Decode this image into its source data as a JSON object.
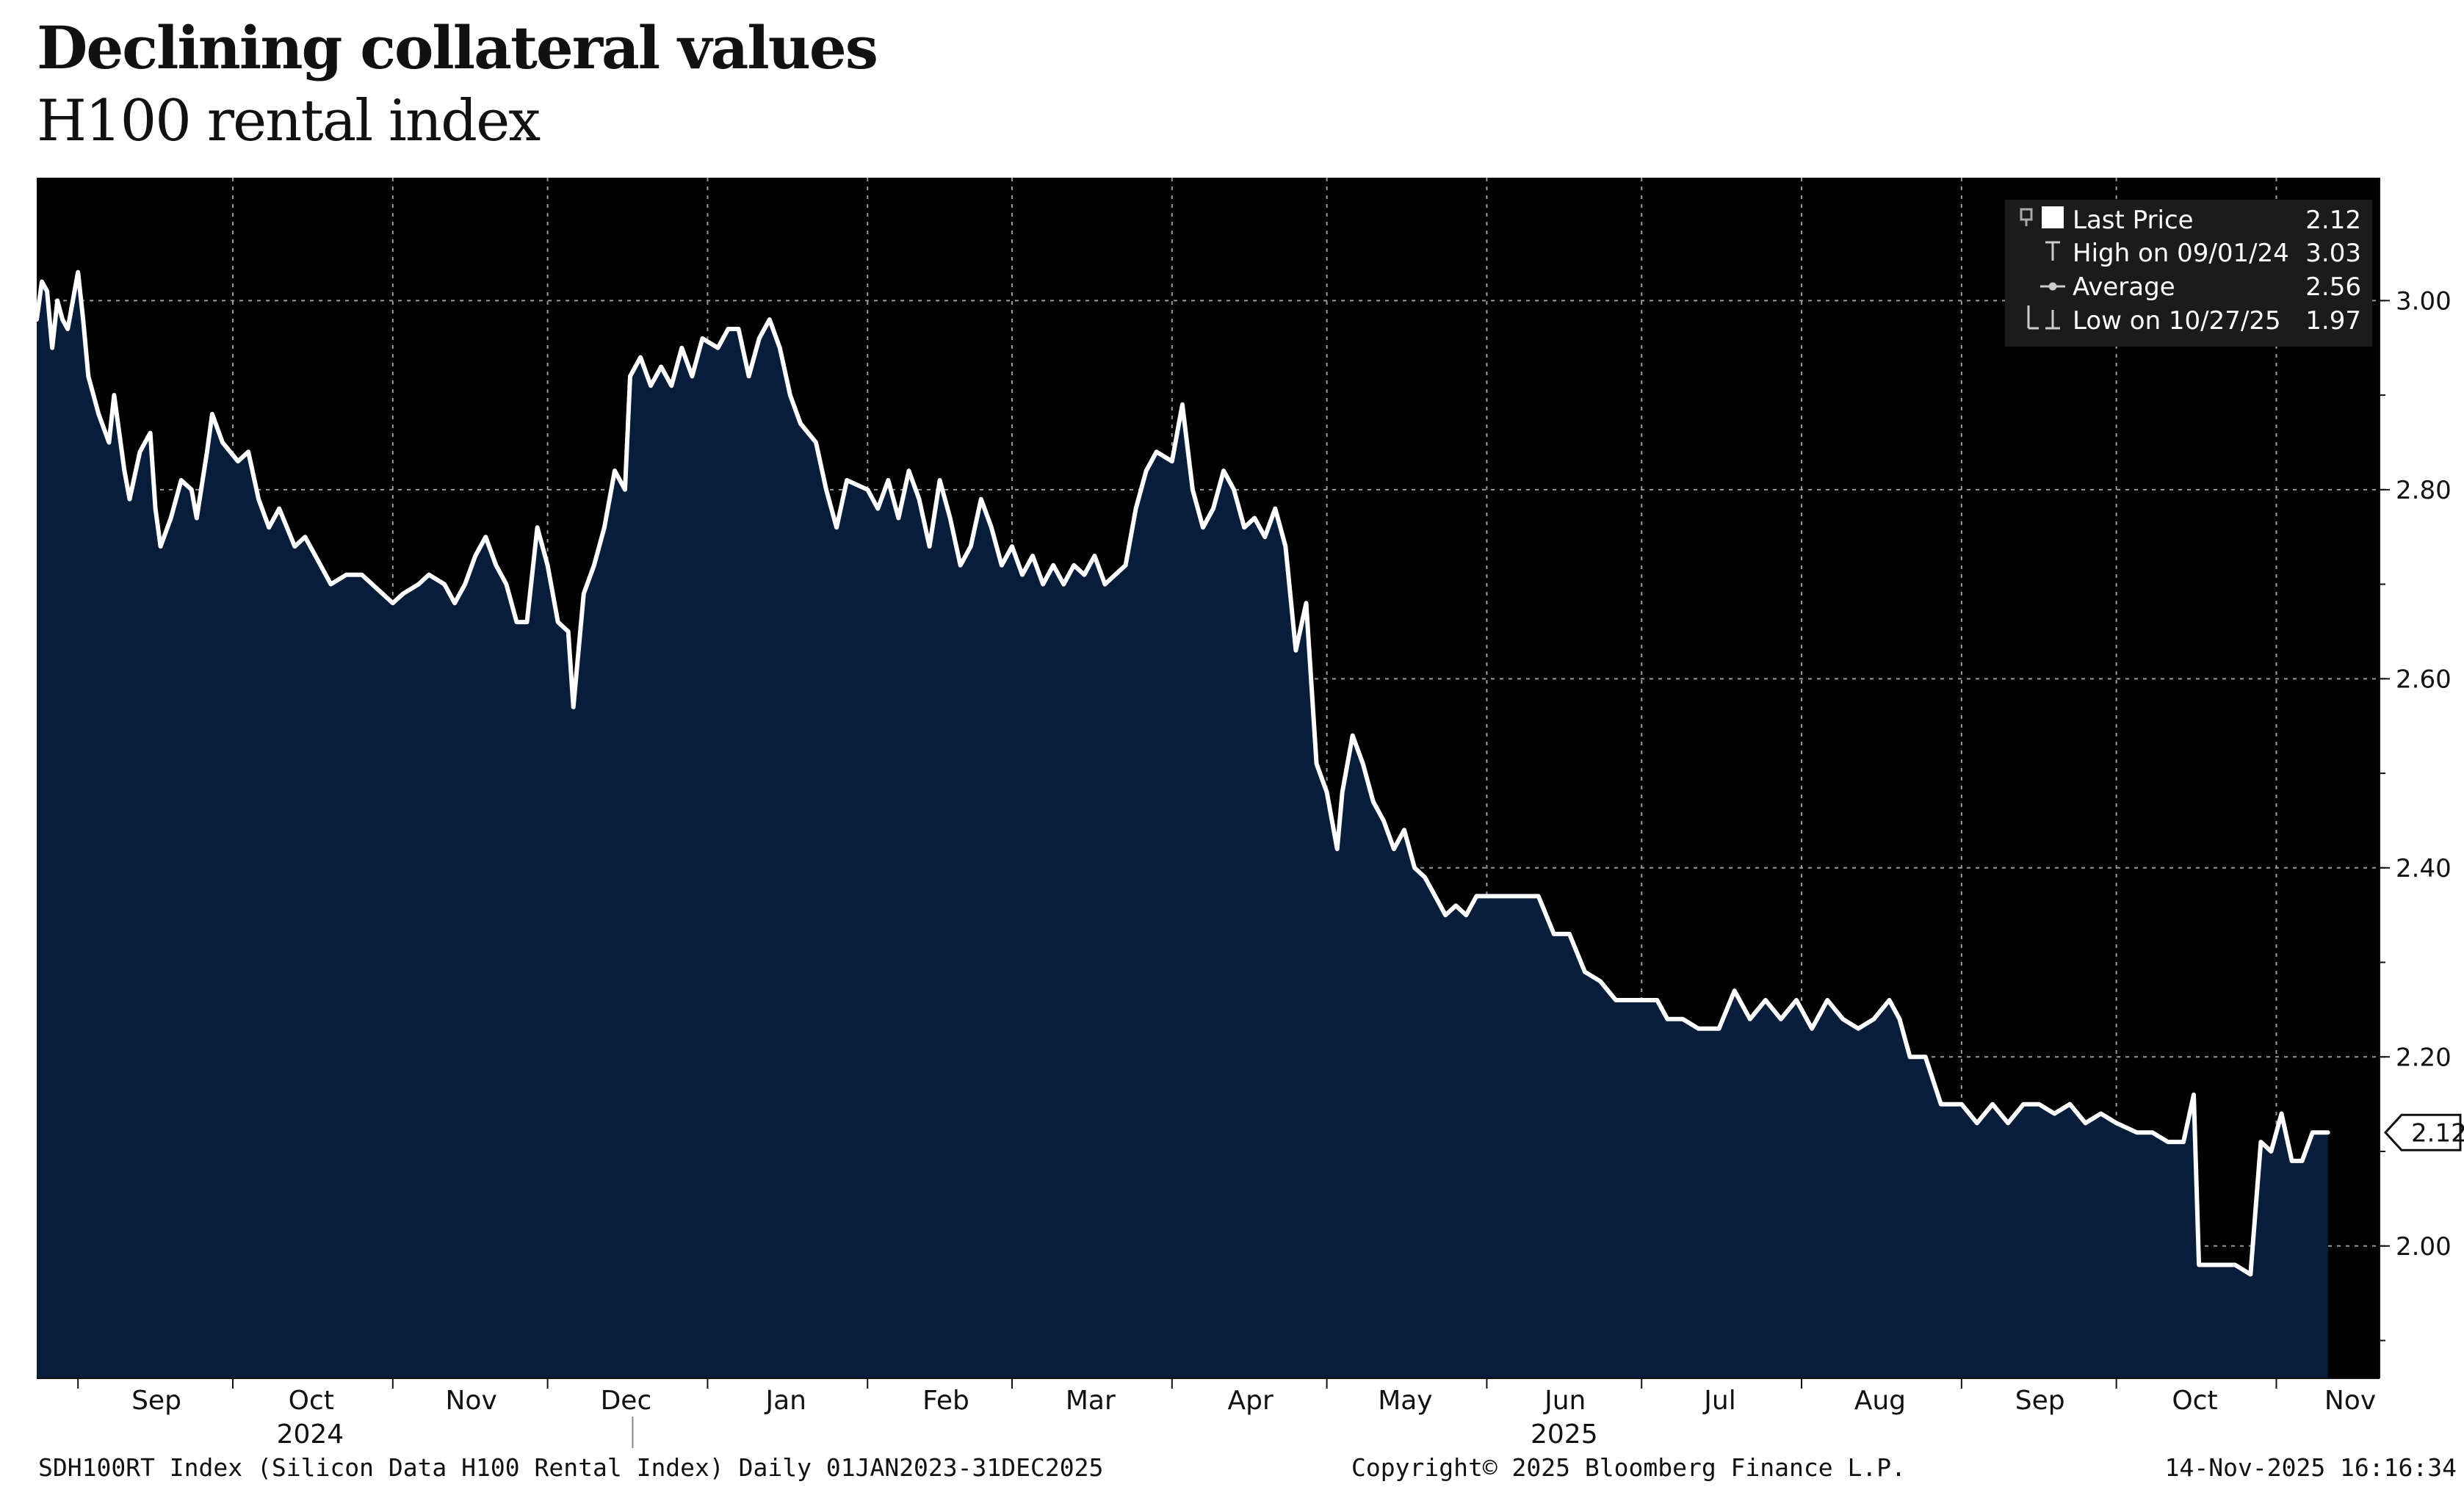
{
  "header": {
    "title": "Declining collateral values",
    "subtitle": "H100 rental index"
  },
  "footer": {
    "source": "SDH100RT Index (Silicon Data H100 Rental Index) Daily 01JAN2023-31DEC2025",
    "copyright": "Copyright© 2025 Bloomberg Finance L.P.",
    "timestamp": "14-Nov-2025 16:16:34"
  },
  "colors": {
    "plot_background": "#000000",
    "area_fill": "#071d3a",
    "line": "#ffffff",
    "grid": "#9a9a9a",
    "legend_background": "#1b1b1b"
  },
  "legend": {
    "rows": [
      {
        "icon": "square-icon",
        "label": "Last Price",
        "value": "2.12"
      },
      {
        "icon": "high-marker-icon",
        "label": "High on 09/01/24",
        "value": "3.03"
      },
      {
        "icon": "average-marker-icon",
        "label": "Average",
        "value": "2.56"
      },
      {
        "icon": "low-marker-icon",
        "label": "Low on 10/27/25",
        "value": "1.97"
      }
    ]
  },
  "last_value_tag": "2.12",
  "chart_data": {
    "type": "area",
    "title": "H100 rental index",
    "xlabel": "",
    "ylabel": "",
    "x_range": [
      "2024-08-24",
      "2025-11-21"
    ],
    "ylim": [
      1.86,
      3.13
    ],
    "y_ticks": [
      "2.00",
      "2.20",
      "2.40",
      "2.60",
      "2.80",
      "3.00"
    ],
    "y_axis_position": "right",
    "grid": true,
    "legend_position": "top-right",
    "x_ticks": [
      {
        "label": "Sep",
        "date": "2024-09-01"
      },
      {
        "label": "Oct",
        "date": "2024-10-01"
      },
      {
        "label": "Nov",
        "date": "2024-11-01"
      },
      {
        "label": "Dec",
        "date": "2024-12-01"
      },
      {
        "label": "Jan",
        "date": "2025-01-01"
      },
      {
        "label": "Feb",
        "date": "2025-02-01"
      },
      {
        "label": "Mar",
        "date": "2025-03-01"
      },
      {
        "label": "Apr",
        "date": "2025-04-01"
      },
      {
        "label": "May",
        "date": "2025-05-01"
      },
      {
        "label": "Jun",
        "date": "2025-06-01"
      },
      {
        "label": "Jul",
        "date": "2025-07-01"
      },
      {
        "label": "Aug",
        "date": "2025-08-01"
      },
      {
        "label": "Sep",
        "date": "2025-09-01"
      },
      {
        "label": "Oct",
        "date": "2025-10-01"
      },
      {
        "label": "Nov",
        "date": "2025-11-01"
      }
    ],
    "year_labels": [
      {
        "label": "2024",
        "date": "2024-10-16"
      },
      {
        "label": "2025",
        "date": "2025-06-16"
      }
    ],
    "series": [
      {
        "name": "Last Price",
        "points": [
          [
            "2024-08-24",
            2.98
          ],
          [
            "2024-08-25",
            3.02
          ],
          [
            "2024-08-26",
            3.01
          ],
          [
            "2024-08-27",
            2.95
          ],
          [
            "2024-08-28",
            3.0
          ],
          [
            "2024-08-29",
            2.98
          ],
          [
            "2024-08-30",
            2.97
          ],
          [
            "2024-08-31",
            3.0
          ],
          [
            "2024-09-01",
            3.03
          ],
          [
            "2024-09-02",
            2.98
          ],
          [
            "2024-09-03",
            2.92
          ],
          [
            "2024-09-05",
            2.88
          ],
          [
            "2024-09-07",
            2.85
          ],
          [
            "2024-09-08",
            2.9
          ],
          [
            "2024-09-10",
            2.82
          ],
          [
            "2024-09-11",
            2.79
          ],
          [
            "2024-09-13",
            2.84
          ],
          [
            "2024-09-15",
            2.86
          ],
          [
            "2024-09-16",
            2.78
          ],
          [
            "2024-09-17",
            2.74
          ],
          [
            "2024-09-19",
            2.77
          ],
          [
            "2024-09-21",
            2.81
          ],
          [
            "2024-09-23",
            2.8
          ],
          [
            "2024-09-24",
            2.77
          ],
          [
            "2024-09-26",
            2.84
          ],
          [
            "2024-09-27",
            2.88
          ],
          [
            "2024-09-29",
            2.85
          ],
          [
            "2024-10-02",
            2.83
          ],
          [
            "2024-10-04",
            2.84
          ],
          [
            "2024-10-06",
            2.79
          ],
          [
            "2024-10-08",
            2.76
          ],
          [
            "2024-10-10",
            2.78
          ],
          [
            "2024-10-13",
            2.74
          ],
          [
            "2024-10-15",
            2.75
          ],
          [
            "2024-10-18",
            2.72
          ],
          [
            "2024-10-20",
            2.7
          ],
          [
            "2024-10-23",
            2.71
          ],
          [
            "2024-10-26",
            2.71
          ],
          [
            "2024-10-28",
            2.7
          ],
          [
            "2024-10-30",
            2.69
          ],
          [
            "2024-11-01",
            2.68
          ],
          [
            "2024-11-03",
            2.69
          ],
          [
            "2024-11-06",
            2.7
          ],
          [
            "2024-11-08",
            2.71
          ],
          [
            "2024-11-11",
            2.7
          ],
          [
            "2024-11-13",
            2.68
          ],
          [
            "2024-11-15",
            2.7
          ],
          [
            "2024-11-17",
            2.73
          ],
          [
            "2024-11-19",
            2.75
          ],
          [
            "2024-11-21",
            2.72
          ],
          [
            "2024-11-23",
            2.7
          ],
          [
            "2024-11-25",
            2.66
          ],
          [
            "2024-11-27",
            2.66
          ],
          [
            "2024-11-29",
            2.76
          ],
          [
            "2024-12-01",
            2.72
          ],
          [
            "2024-12-03",
            2.66
          ],
          [
            "2024-12-05",
            2.65
          ],
          [
            "2024-12-06",
            2.57
          ],
          [
            "2024-12-08",
            2.69
          ],
          [
            "2024-12-10",
            2.72
          ],
          [
            "2024-12-12",
            2.76
          ],
          [
            "2024-12-14",
            2.82
          ],
          [
            "2024-12-16",
            2.8
          ],
          [
            "2024-12-17",
            2.92
          ],
          [
            "2024-12-19",
            2.94
          ],
          [
            "2024-12-21",
            2.91
          ],
          [
            "2024-12-23",
            2.93
          ],
          [
            "2024-12-25",
            2.91
          ],
          [
            "2024-12-27",
            2.95
          ],
          [
            "2024-12-29",
            2.92
          ],
          [
            "2024-12-31",
            2.96
          ],
          [
            "2025-01-03",
            2.95
          ],
          [
            "2025-01-05",
            2.97
          ],
          [
            "2025-01-07",
            2.97
          ],
          [
            "2025-01-09",
            2.92
          ],
          [
            "2025-01-11",
            2.96
          ],
          [
            "2025-01-13",
            2.98
          ],
          [
            "2025-01-15",
            2.95
          ],
          [
            "2025-01-17",
            2.9
          ],
          [
            "2025-01-19",
            2.87
          ],
          [
            "2025-01-22",
            2.85
          ],
          [
            "2025-01-24",
            2.8
          ],
          [
            "2025-01-26",
            2.76
          ],
          [
            "2025-01-28",
            2.81
          ],
          [
            "2025-02-01",
            2.8
          ],
          [
            "2025-02-03",
            2.78
          ],
          [
            "2025-02-05",
            2.81
          ],
          [
            "2025-02-07",
            2.77
          ],
          [
            "2025-02-09",
            2.82
          ],
          [
            "2025-02-11",
            2.79
          ],
          [
            "2025-02-13",
            2.74
          ],
          [
            "2025-02-15",
            2.81
          ],
          [
            "2025-02-17",
            2.77
          ],
          [
            "2025-02-19",
            2.72
          ],
          [
            "2025-02-21",
            2.74
          ],
          [
            "2025-02-23",
            2.79
          ],
          [
            "2025-02-25",
            2.76
          ],
          [
            "2025-02-27",
            2.72
          ],
          [
            "2025-03-01",
            2.74
          ],
          [
            "2025-03-03",
            2.71
          ],
          [
            "2025-03-05",
            2.73
          ],
          [
            "2025-03-07",
            2.7
          ],
          [
            "2025-03-09",
            2.72
          ],
          [
            "2025-03-11",
            2.7
          ],
          [
            "2025-03-13",
            2.72
          ],
          [
            "2025-03-15",
            2.71
          ],
          [
            "2025-03-17",
            2.73
          ],
          [
            "2025-03-19",
            2.7
          ],
          [
            "2025-03-21",
            2.71
          ],
          [
            "2025-03-23",
            2.72
          ],
          [
            "2025-03-25",
            2.78
          ],
          [
            "2025-03-27",
            2.82
          ],
          [
            "2025-03-29",
            2.84
          ],
          [
            "2025-04-01",
            2.83
          ],
          [
            "2025-04-03",
            2.89
          ],
          [
            "2025-04-05",
            2.8
          ],
          [
            "2025-04-07",
            2.76
          ],
          [
            "2025-04-09",
            2.78
          ],
          [
            "2025-04-11",
            2.82
          ],
          [
            "2025-04-13",
            2.8
          ],
          [
            "2025-04-15",
            2.76
          ],
          [
            "2025-04-17",
            2.77
          ],
          [
            "2025-04-19",
            2.75
          ],
          [
            "2025-04-21",
            2.78
          ],
          [
            "2025-04-23",
            2.74
          ],
          [
            "2025-04-25",
            2.63
          ],
          [
            "2025-04-27",
            2.68
          ],
          [
            "2025-04-29",
            2.51
          ],
          [
            "2025-05-01",
            2.48
          ],
          [
            "2025-05-03",
            2.42
          ],
          [
            "2025-05-04",
            2.48
          ],
          [
            "2025-05-06",
            2.54
          ],
          [
            "2025-05-08",
            2.51
          ],
          [
            "2025-05-10",
            2.47
          ],
          [
            "2025-05-12",
            2.45
          ],
          [
            "2025-05-14",
            2.42
          ],
          [
            "2025-05-16",
            2.44
          ],
          [
            "2025-05-18",
            2.4
          ],
          [
            "2025-05-20",
            2.39
          ],
          [
            "2025-05-22",
            2.37
          ],
          [
            "2025-05-24",
            2.35
          ],
          [
            "2025-05-26",
            2.36
          ],
          [
            "2025-05-28",
            2.35
          ],
          [
            "2025-05-30",
            2.37
          ],
          [
            "2025-06-03",
            2.37
          ],
          [
            "2025-06-07",
            2.37
          ],
          [
            "2025-06-11",
            2.37
          ],
          [
            "2025-06-14",
            2.33
          ],
          [
            "2025-06-17",
            2.33
          ],
          [
            "2025-06-20",
            2.29
          ],
          [
            "2025-06-23",
            2.28
          ],
          [
            "2025-06-26",
            2.26
          ],
          [
            "2025-06-30",
            2.26
          ],
          [
            "2025-07-04",
            2.26
          ],
          [
            "2025-07-06",
            2.24
          ],
          [
            "2025-07-09",
            2.24
          ],
          [
            "2025-07-12",
            2.23
          ],
          [
            "2025-07-16",
            2.23
          ],
          [
            "2025-07-19",
            2.27
          ],
          [
            "2025-07-22",
            2.24
          ],
          [
            "2025-07-25",
            2.26
          ],
          [
            "2025-07-28",
            2.24
          ],
          [
            "2025-07-31",
            2.26
          ],
          [
            "2025-08-03",
            2.23
          ],
          [
            "2025-08-06",
            2.26
          ],
          [
            "2025-08-09",
            2.24
          ],
          [
            "2025-08-12",
            2.23
          ],
          [
            "2025-08-15",
            2.24
          ],
          [
            "2025-08-18",
            2.26
          ],
          [
            "2025-08-20",
            2.24
          ],
          [
            "2025-08-22",
            2.2
          ],
          [
            "2025-08-25",
            2.2
          ],
          [
            "2025-08-28",
            2.15
          ],
          [
            "2025-09-01",
            2.15
          ],
          [
            "2025-09-04",
            2.13
          ],
          [
            "2025-09-07",
            2.15
          ],
          [
            "2025-09-10",
            2.13
          ],
          [
            "2025-09-13",
            2.15
          ],
          [
            "2025-09-16",
            2.15
          ],
          [
            "2025-09-19",
            2.14
          ],
          [
            "2025-09-22",
            2.15
          ],
          [
            "2025-09-25",
            2.13
          ],
          [
            "2025-09-28",
            2.14
          ],
          [
            "2025-10-01",
            2.13
          ],
          [
            "2025-10-05",
            2.12
          ],
          [
            "2025-10-08",
            2.12
          ],
          [
            "2025-10-11",
            2.11
          ],
          [
            "2025-10-14",
            2.11
          ],
          [
            "2025-10-16",
            2.16
          ],
          [
            "2025-10-17",
            1.98
          ],
          [
            "2025-10-20",
            1.98
          ],
          [
            "2025-10-24",
            1.98
          ],
          [
            "2025-10-27",
            1.97
          ],
          [
            "2025-10-29",
            2.11
          ],
          [
            "2025-10-31",
            2.1
          ],
          [
            "2025-11-02",
            2.14
          ],
          [
            "2025-11-04",
            2.09
          ],
          [
            "2025-11-06",
            2.09
          ],
          [
            "2025-11-08",
            2.12
          ],
          [
            "2025-11-10",
            2.12
          ],
          [
            "2025-11-11",
            2.12
          ]
        ]
      }
    ]
  }
}
